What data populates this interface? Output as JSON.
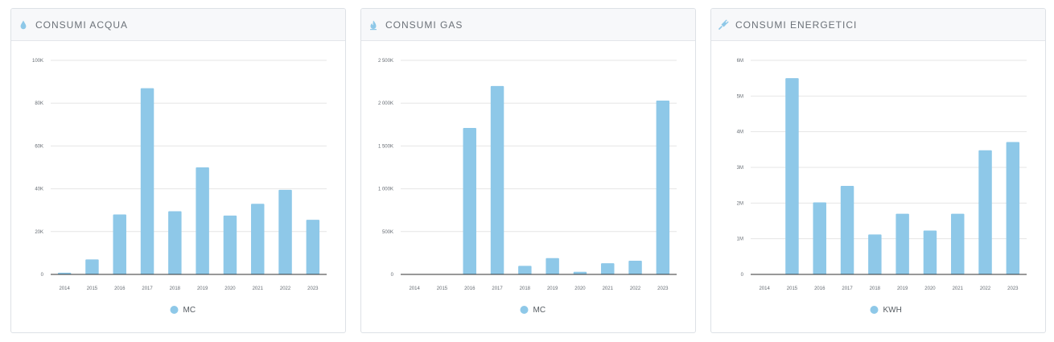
{
  "colors": {
    "bar": "#8ec8e8",
    "grid": "#e6e6e6",
    "axis": "#333333",
    "icon": "#8ec8e8"
  },
  "panels": [
    {
      "title": "CONSUMI ACQUA",
      "icon": "water-drop-icon",
      "chart_data": {
        "type": "bar",
        "categories": [
          "2014",
          "2015",
          "2016",
          "2017",
          "2018",
          "2019",
          "2020",
          "2021",
          "2022",
          "2023"
        ],
        "series": [
          {
            "name": "MC",
            "values": [
              800,
              7000,
              28000,
              87000,
              29500,
              50000,
              27500,
              33000,
              39500,
              25500
            ]
          }
        ],
        "ylim": [
          0,
          100000
        ],
        "yticks": [
          0,
          20000,
          40000,
          60000,
          80000,
          100000
        ],
        "ytick_labels": [
          "0",
          "20K",
          "40K",
          "60K",
          "80K",
          "100K"
        ],
        "legend": "bottom-center",
        "grid": true
      }
    },
    {
      "title": "CONSUMI GAS",
      "icon": "flame-icon",
      "chart_data": {
        "type": "bar",
        "categories": [
          "2014",
          "2015",
          "2016",
          "2017",
          "2018",
          "2019",
          "2020",
          "2021",
          "2022",
          "2023"
        ],
        "series": [
          {
            "name": "MC",
            "values": [
              0,
              0,
              1710000,
              2200000,
              100000,
              190000,
              30000,
              130000,
              160000,
              2030000
            ]
          }
        ],
        "ylim": [
          0,
          2500000
        ],
        "yticks": [
          0,
          500000,
          1000000,
          1500000,
          2000000,
          2500000
        ],
        "ytick_labels": [
          "0",
          "500K",
          "1 000K",
          "1 500K",
          "2 000K",
          "2 500K"
        ],
        "legend": "bottom-center",
        "grid": true
      }
    },
    {
      "title": "CONSUMI ENERGETICI",
      "icon": "plug-icon",
      "chart_data": {
        "type": "bar",
        "categories": [
          "2014",
          "2015",
          "2016",
          "2017",
          "2018",
          "2019",
          "2020",
          "2021",
          "2022",
          "2023"
        ],
        "series": [
          {
            "name": "KWH",
            "values": [
              0,
              5500000,
              2020000,
              2480000,
              1120000,
              1700000,
              1230000,
              1700000,
              3480000,
              3710000
            ]
          }
        ],
        "ylim": [
          0,
          6000000
        ],
        "yticks": [
          0,
          1000000,
          2000000,
          3000000,
          4000000,
          5000000,
          6000000
        ],
        "ytick_labels": [
          "0",
          "1M",
          "2M",
          "3M",
          "4M",
          "5M",
          "6M"
        ],
        "legend": "bottom-center",
        "grid": true
      }
    }
  ]
}
